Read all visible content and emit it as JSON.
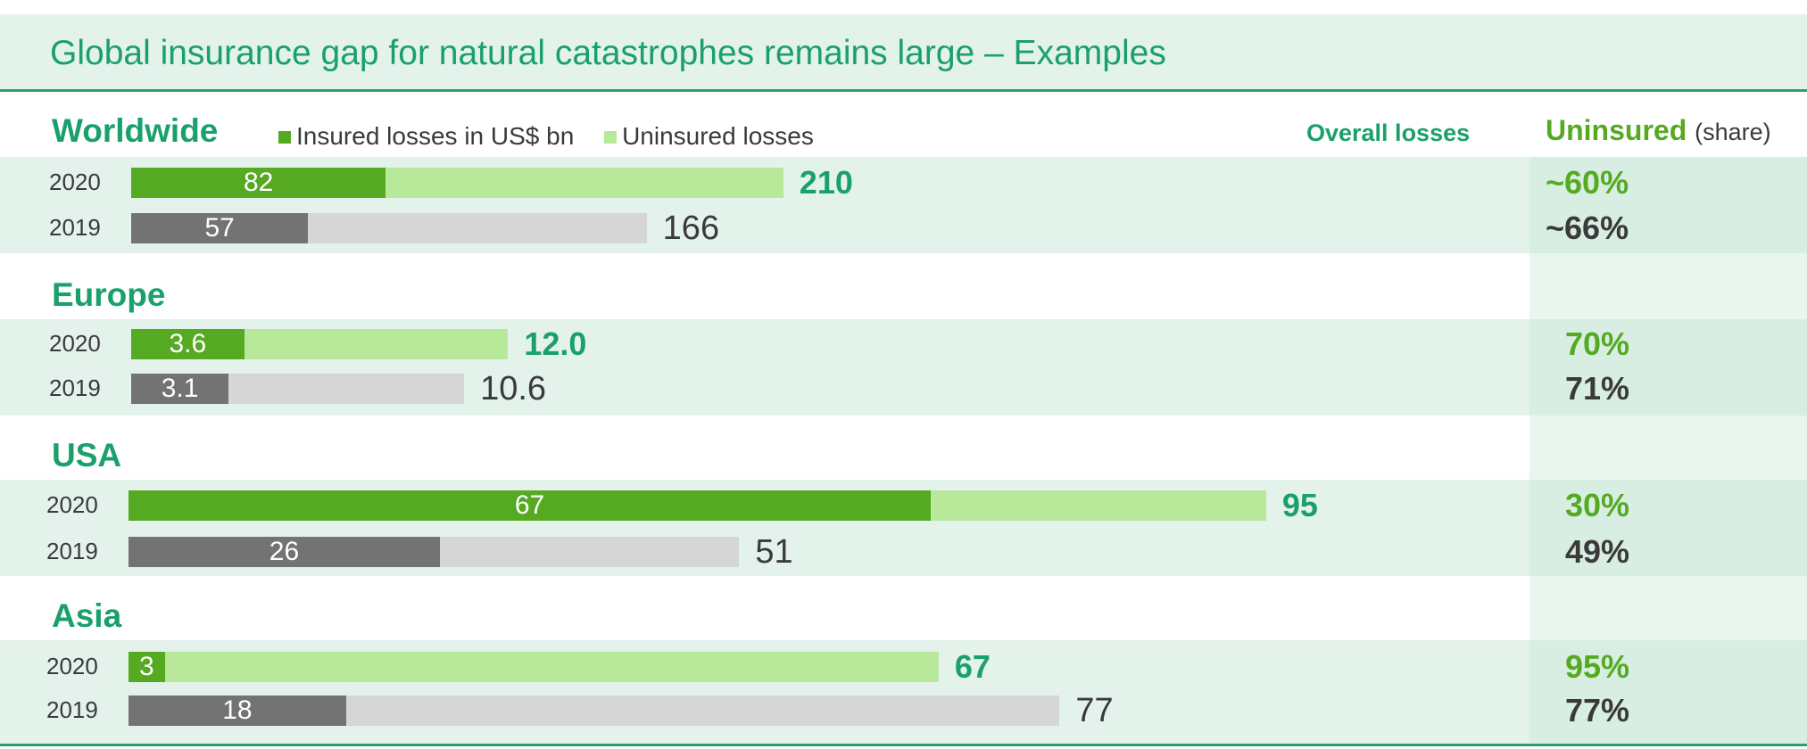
{
  "header": {
    "title": "Global insurance gap for natural catastrophes remains large – Examples"
  },
  "legend": {
    "insured": "Insured losses in US$ bn",
    "uninsured": "Uninsured losses"
  },
  "columns": {
    "overall": "Overall losses",
    "uninsured": "Uninsured",
    "uninsured_suffix": "(share)"
  },
  "colors": {
    "insured_current": "#55aa22",
    "uninsured_current": "#b8e89a",
    "insured_previous": "#737373",
    "uninsured_previous": "#d6d6d6",
    "brand_green": "#1aa06c"
  },
  "chart_data": {
    "type": "bar",
    "orientation": "horizontal",
    "stacked": true,
    "title": "Global insurance gap for natural catastrophes remains large – Examples",
    "unit": "US$ bn",
    "groups": [
      {
        "name": "Worldwide",
        "rows": [
          {
            "year": "2020",
            "insured": 82,
            "insured_label": "82",
            "overall": 210,
            "overall_label": "210",
            "uninsured_share": "~60%"
          },
          {
            "year": "2019",
            "insured": 57,
            "insured_label": "57",
            "overall": 166,
            "overall_label": "166",
            "uninsured_share": "~66%"
          }
        ]
      },
      {
        "name": "Europe",
        "rows": [
          {
            "year": "2020",
            "insured": 3.6,
            "insured_label": "3.6",
            "overall": 12.0,
            "overall_label": "12.0",
            "uninsured_share": "70%"
          },
          {
            "year": "2019",
            "insured": 3.1,
            "insured_label": "3.1",
            "overall": 10.6,
            "overall_label": "10.6",
            "uninsured_share": "71%"
          }
        ]
      },
      {
        "name": "USA",
        "rows": [
          {
            "year": "2020",
            "insured": 67,
            "insured_label": "67",
            "overall": 95,
            "overall_label": "95",
            "uninsured_share": "30%"
          },
          {
            "year": "2019",
            "insured": 26,
            "insured_label": "26",
            "overall": 51,
            "overall_label": "51",
            "uninsured_share": "49%"
          }
        ]
      },
      {
        "name": "Asia",
        "rows": [
          {
            "year": "2020",
            "insured": 3,
            "insured_label": "3",
            "overall": 67,
            "overall_label": "67",
            "uninsured_share": "95%"
          },
          {
            "year": "2019",
            "insured": 18,
            "insured_label": "18",
            "overall": 77,
            "overall_label": "77",
            "uninsured_share": "77%"
          }
        ]
      }
    ]
  }
}
